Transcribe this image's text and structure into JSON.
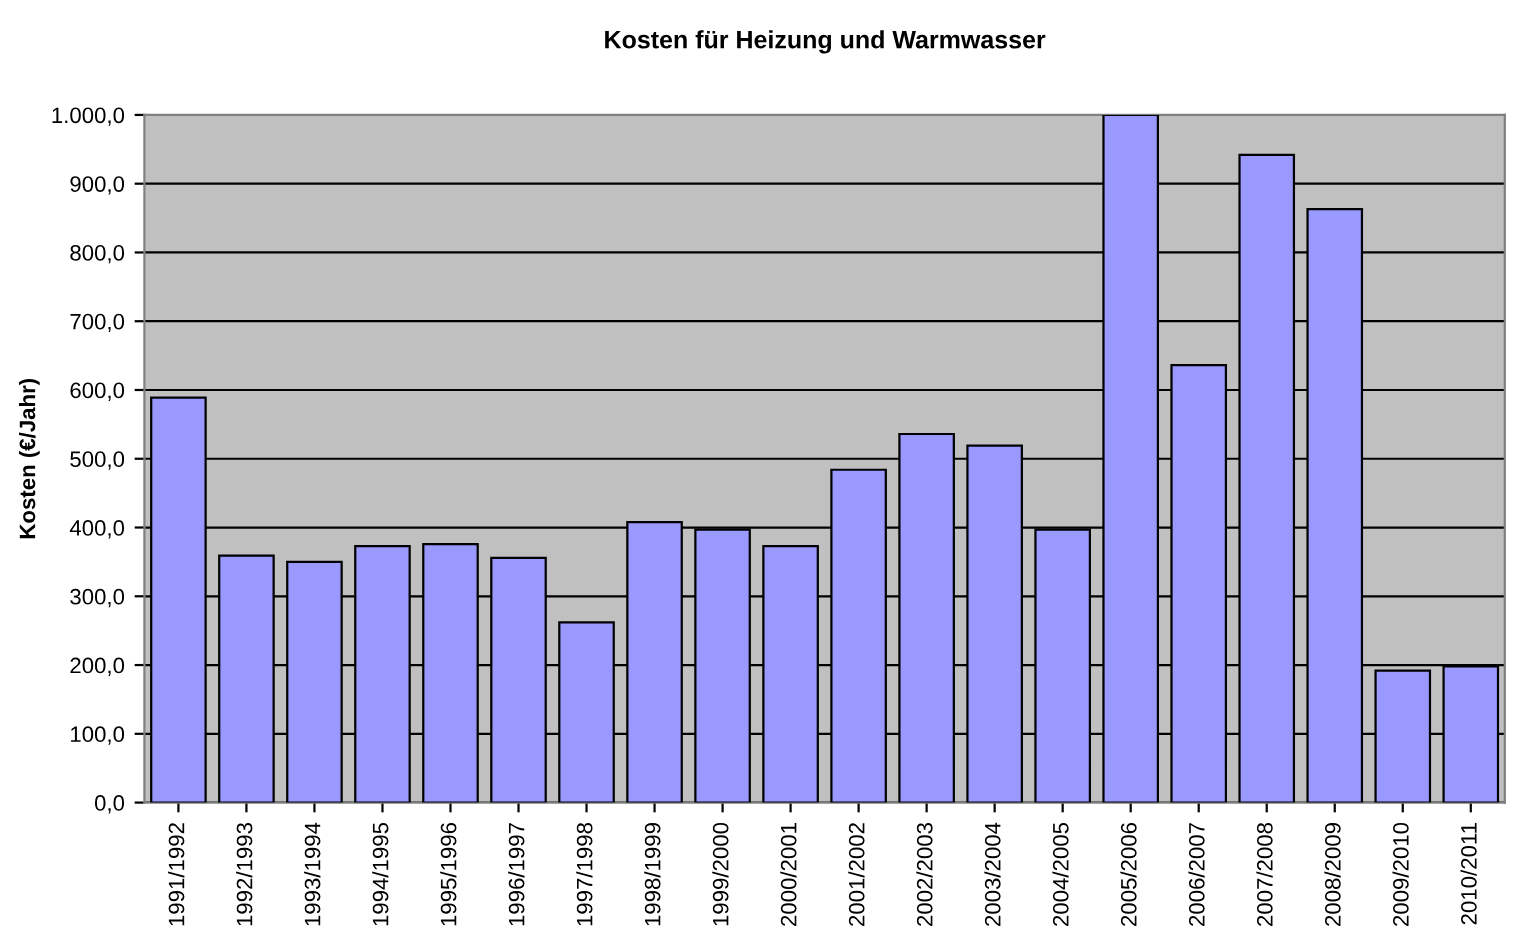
{
  "chart_data": {
    "type": "bar",
    "title": "Kosten für Heizung und Warmwasser",
    "ylabel": "Kosten (€/Jahr)",
    "categories": [
      "1991/1992",
      "1992/1993",
      "1993/1994",
      "1994/1995",
      "1995/1996",
      "1996/1997",
      "1997/1998",
      "1998/1999",
      "1999/2000",
      "2000/2001",
      "2001/2002",
      "2002/2003",
      "2003/2004",
      "2004/2005",
      "2005/2006",
      "2006/2007",
      "2007/2008",
      "2008/2009",
      "2009/2010",
      "2010/2011"
    ],
    "values": [
      589,
      359,
      350,
      373,
      376,
      356,
      262,
      408,
      397,
      373,
      484,
      536,
      519,
      397,
      1000,
      636,
      942,
      863,
      192,
      198
    ],
    "color": "#9999ff",
    "ylim": [
      0,
      1000
    ],
    "yticks": [
      {
        "value": 0,
        "label": "0,0"
      },
      {
        "value": 100,
        "label": "100,0"
      },
      {
        "value": 200,
        "label": "200,0"
      },
      {
        "value": 300,
        "label": "300,0"
      },
      {
        "value": 400,
        "label": "400,0"
      },
      {
        "value": 500,
        "label": "500,0"
      },
      {
        "value": 600,
        "label": "600,0"
      },
      {
        "value": 700,
        "label": "700,0"
      },
      {
        "value": 800,
        "label": "800,0"
      },
      {
        "value": 900,
        "label": "900,0"
      },
      {
        "value": 1000,
        "label": "1.000,0"
      }
    ],
    "grid": "y",
    "legend": false
  }
}
